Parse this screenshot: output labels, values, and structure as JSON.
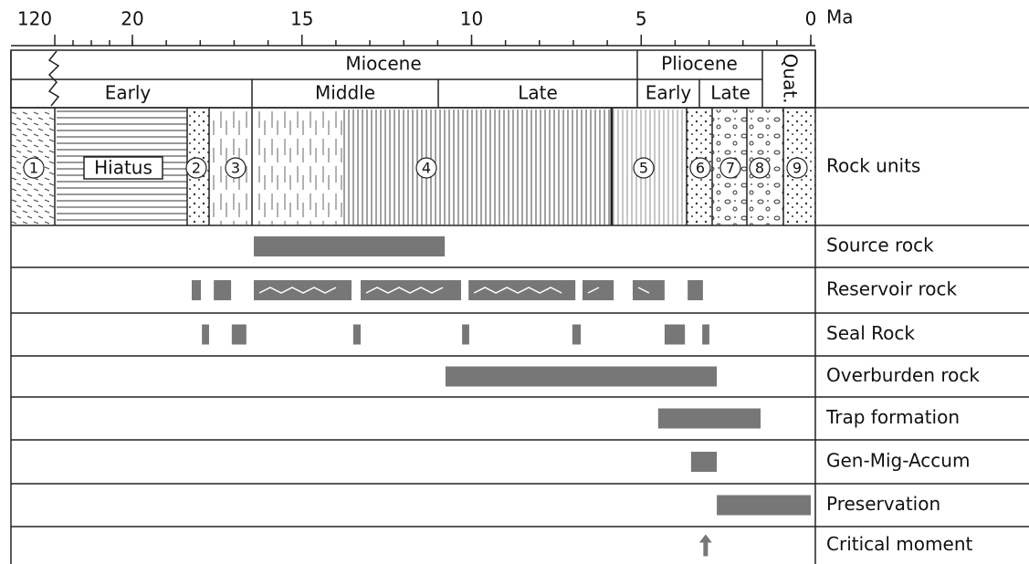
{
  "axis": {
    "unit": "Ma",
    "ticks": [
      120,
      20,
      15,
      10,
      5,
      0
    ]
  },
  "epochs": {
    "series": [
      "Miocene",
      "Pliocene",
      "Quat."
    ],
    "stages": [
      "Early",
      "Middle",
      "Late",
      "Early",
      "Late"
    ]
  },
  "rock_units": {
    "title": "Rock units",
    "labels": [
      "1",
      "Hiatus",
      "2",
      "3",
      "4",
      "5",
      "6",
      "7",
      "8",
      "9"
    ]
  },
  "rows": [
    {
      "name": "Source rock",
      "bars": [
        [
          16.42,
          10.79
        ]
      ]
    },
    {
      "name": "Reservoir rock",
      "bars": [
        [
          18.25,
          17.98
        ],
        [
          17.6,
          17.09
        ],
        [
          16.42,
          13.54
        ],
        [
          13.27,
          10.31
        ],
        [
          10.09,
          6.94
        ],
        [
          6.73,
          5.81
        ],
        [
          5.25,
          4.31
        ],
        [
          3.63,
          3.18
        ]
      ]
    },
    {
      "name": "Seal Rock",
      "bars": [
        [
          17.95,
          17.74
        ],
        [
          17.07,
          16.64
        ],
        [
          13.49,
          13.27
        ],
        [
          10.28,
          10.07
        ],
        [
          7.03,
          6.78
        ],
        [
          4.31,
          3.71
        ],
        [
          3.2,
          2.99
        ]
      ]
    },
    {
      "name": "Overburden rock",
      "bars": [
        [
          10.77,
          2.77
        ]
      ]
    },
    {
      "name": "Trap formation",
      "bars": [
        [
          4.5,
          1.48
        ]
      ]
    },
    {
      "name": "Gen-Mig-Accum",
      "bars": [
        [
          3.53,
          2.77
        ]
      ]
    },
    {
      "name": "Preservation",
      "bars": [
        [
          2.77,
          0
        ]
      ]
    },
    {
      "name": "Critical moment",
      "arrow": 3.1
    }
  ]
}
